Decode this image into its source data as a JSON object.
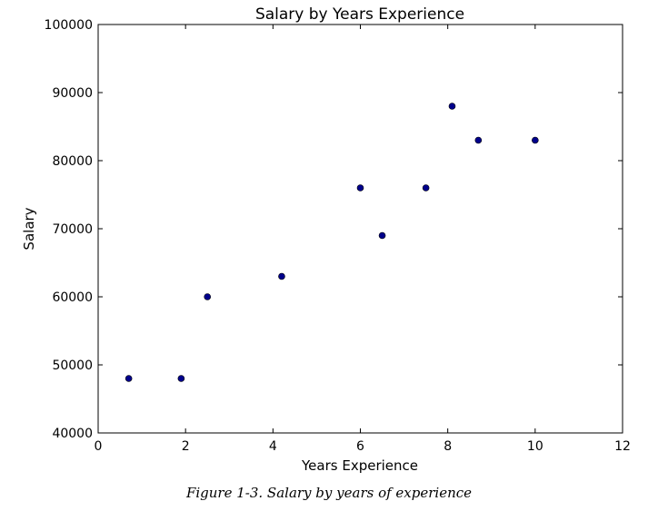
{
  "chart_data": {
    "type": "scatter",
    "title": "Salary by Years Experience",
    "xlabel": "Years Experience",
    "ylabel": "Salary",
    "xlim": [
      0,
      12
    ],
    "ylim": [
      40000,
      100000
    ],
    "xticks": [
      0,
      2,
      4,
      6,
      8,
      10,
      12
    ],
    "yticks": [
      40000,
      50000,
      60000,
      70000,
      80000,
      90000,
      100000
    ],
    "grid": false,
    "point_color": "#00008b",
    "x": [
      0.7,
      1.9,
      2.5,
      4.2,
      6.0,
      6.5,
      7.5,
      8.1,
      8.7,
      10.0
    ],
    "y": [
      48000,
      48000,
      60000,
      63000,
      76000,
      69000,
      76000,
      88000,
      83000,
      83000
    ]
  },
  "caption": "Figure 1-3. Salary by years of experience"
}
